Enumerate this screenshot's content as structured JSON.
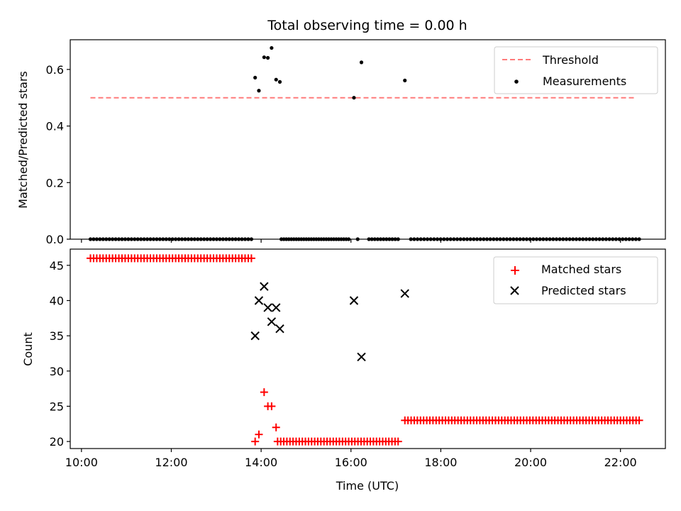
{
  "chart_data": [
    {
      "type": "scatter",
      "title": "Total observing time = 0.00 h",
      "xlabel": "",
      "ylabel": "Matched/Predicted stars",
      "ylim": [
        0,
        0.705
      ],
      "yticks": [
        0.0,
        0.2,
        0.4,
        0.6
      ],
      "ytick_labels": [
        "0.0",
        "0.2",
        "0.4",
        "0.6"
      ],
      "xlim": [
        "09:45",
        "23:00"
      ],
      "grid": false,
      "legend_position": "top-right",
      "threshold": {
        "name": "Threshold",
        "color": "#ff7b7b",
        "style": "dashed",
        "y": 0.5,
        "x_start": "10:12",
        "x_end": "22:20"
      },
      "series": [
        {
          "name": "Measurements",
          "color": "#000000",
          "marker": "dot",
          "points": [
            [
              "13:52",
              0.571
            ],
            [
              "13:57",
              0.525
            ],
            [
              "14:04",
              0.643
            ],
            [
              "14:09",
              0.641
            ],
            [
              "14:14",
              0.676
            ],
            [
              "14:20",
              0.564
            ],
            [
              "14:25",
              0.556
            ],
            [
              "16:04",
              0.5
            ],
            [
              "16:14",
              0.625
            ],
            [
              "17:12",
              0.561
            ]
          ],
          "zero_runs": [
            [
              "10:12",
              "13:47",
              52
            ],
            [
              "14:27",
              "15:57",
              28
            ],
            [
              "16:24",
              "17:03",
              11
            ],
            [
              "17:20",
              "22:25",
              70
            ]
          ],
          "zero_extra": [
            "16:09"
          ]
        }
      ]
    },
    {
      "type": "scatter",
      "title": "",
      "xlabel": "Time (UTC)",
      "ylabel": "Count",
      "ylim": [
        19,
        47.3
      ],
      "yticks": [
        20,
        25,
        30,
        35,
        40,
        45
      ],
      "ytick_labels": [
        "20",
        "25",
        "30",
        "35",
        "40",
        "45"
      ],
      "xlim": [
        "09:45",
        "23:00"
      ],
      "xticks": [
        "10:00",
        "12:00",
        "14:00",
        "16:00",
        "18:00",
        "20:00",
        "22:00"
      ],
      "xtick_labels": [
        "10:00",
        "12:00",
        "14:00",
        "16:00",
        "18:00",
        "20:00",
        "22:00"
      ],
      "grid": false,
      "legend_position": "top-right",
      "series": [
        {
          "name": "Matched stars",
          "color": "#ff0000",
          "marker": "plus",
          "runs": [
            [
              "10:12",
              "13:47",
              52,
              46
            ],
            [
              "14:22",
              "17:03",
              40,
              20
            ],
            [
              "17:12",
              "22:25",
              76,
              23
            ]
          ],
          "points": [
            [
              "13:52",
              20
            ],
            [
              "13:57",
              21
            ],
            [
              "14:04",
              27
            ],
            [
              "14:09",
              25
            ],
            [
              "14:14",
              25
            ],
            [
              "14:20",
              22
            ]
          ]
        },
        {
          "name": "Predicted stars",
          "color": "#000000",
          "marker": "x",
          "points": [
            [
              "13:52",
              35
            ],
            [
              "13:57",
              40
            ],
            [
              "14:04",
              42
            ],
            [
              "14:09",
              39
            ],
            [
              "14:14",
              37
            ],
            [
              "14:20",
              39
            ],
            [
              "14:25",
              36
            ],
            [
              "16:04",
              40
            ],
            [
              "16:14",
              32
            ],
            [
              "17:12",
              41
            ]
          ]
        }
      ]
    }
  ]
}
